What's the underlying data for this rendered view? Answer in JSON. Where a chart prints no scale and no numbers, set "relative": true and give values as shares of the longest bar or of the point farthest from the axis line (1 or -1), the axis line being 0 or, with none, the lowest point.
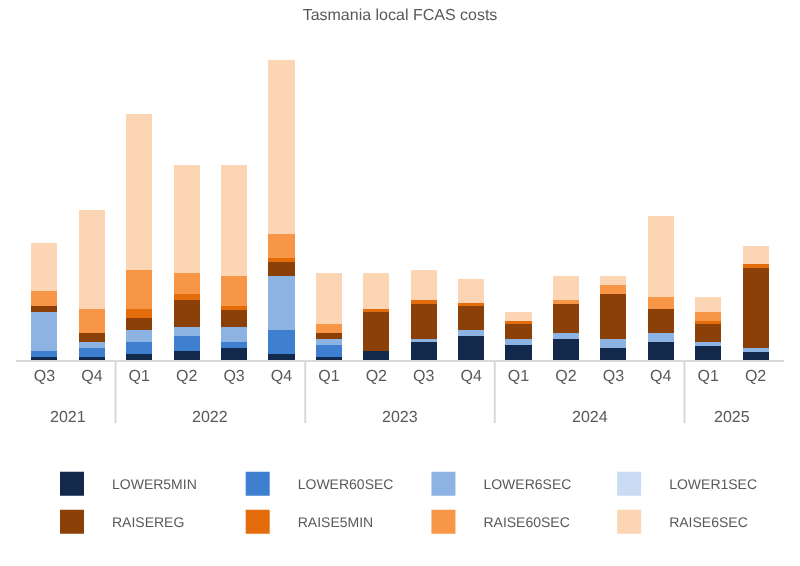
{
  "chart_data": {
    "type": "bar",
    "title": "Tasmania local FCAS costs",
    "relative": true,
    "stacked": true,
    "legend": "bottom",
    "categories": [
      "Q3",
      "Q4",
      "Q1",
      "Q2",
      "Q3",
      "Q4",
      "Q1",
      "Q2",
      "Q3",
      "Q4",
      "Q1",
      "Q2",
      "Q3",
      "Q4",
      "Q1",
      "Q2"
    ],
    "annotations": [
      "2021",
      "2022",
      "2023",
      "2024",
      "2025"
    ],
    "series": [
      {
        "name": "LOWER5MIN",
        "color": "#13294b",
        "values": [
          0.01,
          0.01,
          0.02,
          0.03,
          0.04,
          0.02,
          0.01,
          0.03,
          0.06,
          0.08,
          0.05,
          0.07,
          0.04,
          0.06,
          0.05,
          0.03
        ]
      },
      {
        "name": "LOWER60SEC",
        "color": "#3f7fd0",
        "values": [
          0.02,
          0.03,
          0.04,
          0.05,
          0.02,
          0.08,
          0.04,
          0,
          0,
          0,
          0,
          0,
          0,
          0,
          0,
          0
        ]
      },
      {
        "name": "LOWER6SEC",
        "color": "#8db3e2",
        "values": [
          0.13,
          0.02,
          0.04,
          0.03,
          0.05,
          0.18,
          0.02,
          0,
          0.01,
          0.02,
          0.02,
          0.02,
          0.03,
          0.03,
          0.01,
          0.01
        ]
      },
      {
        "name": "LOWER1SEC",
        "color": "#c9dcf3",
        "values": [
          0,
          0,
          0,
          0,
          0,
          0,
          0,
          0,
          0,
          0,
          0,
          0,
          0,
          0,
          0,
          0
        ]
      },
      {
        "name": "RAISEREG",
        "color": "#8b4008",
        "values": [
          0.02,
          0.03,
          0.04,
          0.09,
          0.06,
          0.05,
          0.02,
          0.13,
          0.12,
          0.08,
          0.05,
          0.1,
          0.15,
          0.08,
          0.06,
          0.27
        ]
      },
      {
        "name": "RAISE5MIN",
        "color": "#e46c0a",
        "values": [
          0,
          0,
          0.03,
          0.02,
          0.01,
          0.01,
          0,
          0.01,
          0.01,
          0.01,
          0.01,
          0,
          0,
          0,
          0.01,
          0.01
        ]
      },
      {
        "name": "RAISE60SEC",
        "color": "#f79646",
        "values": [
          0.05,
          0.08,
          0.13,
          0.07,
          0.1,
          0.08,
          0.03,
          0,
          0,
          0,
          0,
          0.01,
          0.03,
          0.04,
          0.03,
          0
        ]
      },
      {
        "name": "RAISE6SEC",
        "color": "#fcd5b4",
        "values": [
          0.16,
          0.33,
          0.52,
          0.36,
          0.37,
          0.58,
          0.17,
          0.12,
          0.1,
          0.08,
          0.03,
          0.08,
          0.03,
          0.27,
          0.05,
          0.06
        ]
      }
    ]
  }
}
